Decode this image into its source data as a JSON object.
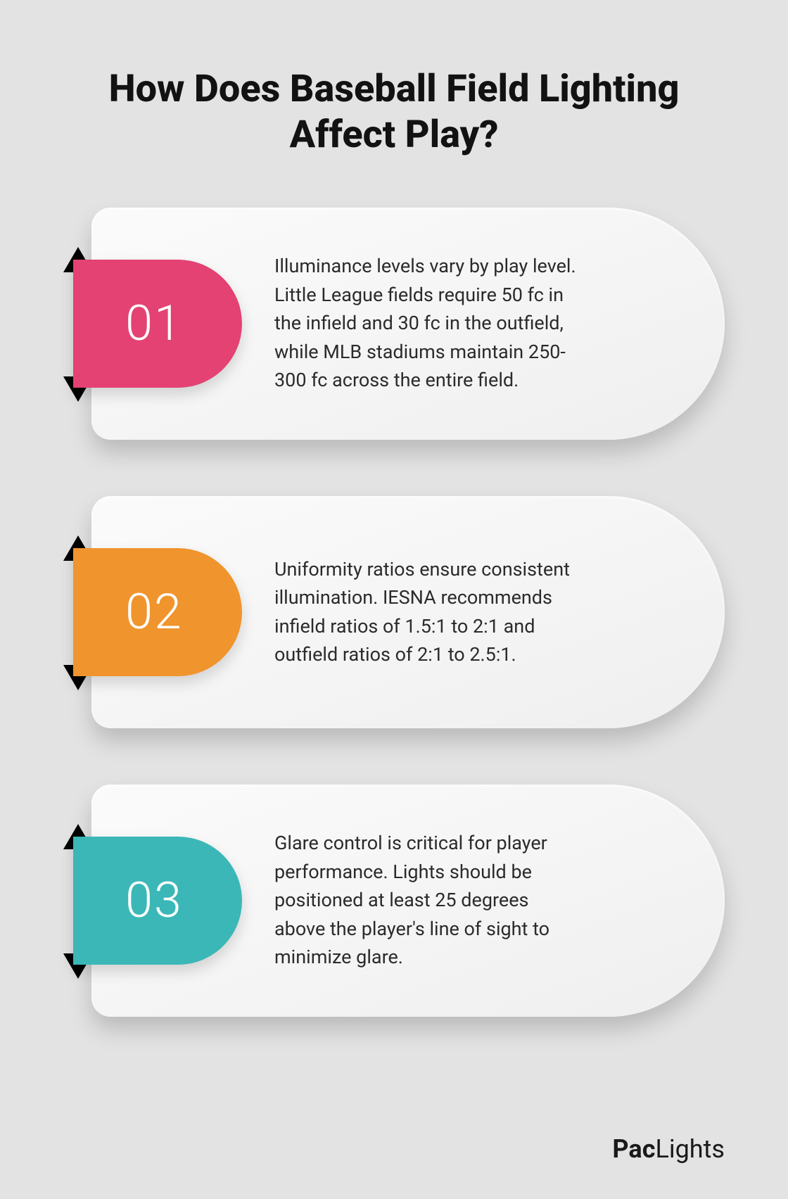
{
  "title": "How Does Baseball Field Lighting Affect Play?",
  "title_fontsize": 54,
  "title_color": "#121212",
  "background_color": "#e3e3e3",
  "card_bg_top": "#fbfbfb",
  "card_bg_bot": "#efeff0",
  "body_text_color": "#2b2b2b",
  "body_fontsize": 27,
  "badge_text_color": "#ffffff",
  "badge_fontsize": 70,
  "brand_prefix": "Pac",
  "brand_suffix": "Lights",
  "brand_color": "#1a1a1a",
  "items": [
    {
      "num": "01",
      "badge_color": "#e34272",
      "ribbon_color": "#b12c56",
      "text": "Illuminance levels vary by play level. Little League fields require 50 fc in the infield and 30 fc in the outfield, while MLB stadiums maintain 250-300 fc across the entire field."
    },
    {
      "num": "02",
      "badge_color": "#f0942d",
      "ribbon_color": "#c26f15",
      "text": "Uniformity ratios ensure consistent illumination. IESNA recommends infield ratios of 1.5:1 to 2:1 and outfield ratios of 2:1 to 2.5:1."
    },
    {
      "num": "03",
      "badge_color": "#3bb7b7",
      "ribbon_color": "#1f8e8e",
      "text": "Glare control is critical for player performance. Lights should be positioned at least 25 degrees above the player's line of sight to minimize glare."
    }
  ]
}
